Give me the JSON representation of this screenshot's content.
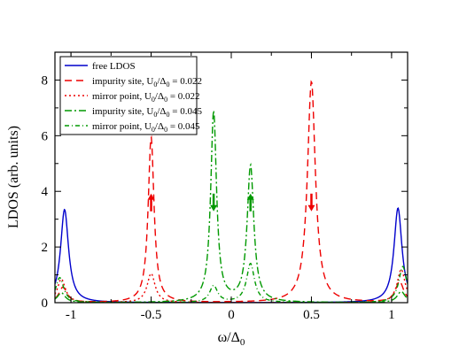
{
  "chart_data": {
    "type": "line",
    "title": "",
    "xlabel": "ω/Δ",
    "xlabel_sub": "0",
    "ylabel": "LDOS (arb. units)",
    "xlim": [
      -1.1,
      1.1
    ],
    "ylim": [
      0,
      9
    ],
    "xticks": [
      -1,
      -0.5,
      0,
      0.5,
      1
    ],
    "xtick_labels": [
      "-1",
      "-0.5",
      "0",
      "0.5",
      "1"
    ],
    "yticks": [
      0,
      2,
      4,
      6,
      8
    ],
    "ytick_labels": [
      "0",
      "2",
      "4",
      "6",
      "8"
    ],
    "grid": false,
    "legend_position": "top-left",
    "series": [
      {
        "legend": {
          "text": "free LDOS",
          "parts": []
        },
        "color": "#0000cc",
        "dash": "solid",
        "peaks": [
          {
            "x": -1.04,
            "h": 3.35,
            "w": 0.03
          },
          {
            "x": 1.04,
            "h": 3.4,
            "w": 0.03
          }
        ],
        "base": 0.0
      },
      {
        "legend": {
          "text": "impurity site, U",
          "parts": [
            "0",
            "/Δ",
            "0",
            " = 0.022"
          ]
        },
        "color": "#ee0000",
        "dash": "8,5",
        "peaks": [
          {
            "x": -0.5,
            "h": 5.95,
            "w": 0.022
          },
          {
            "x": 0.5,
            "h": 7.95,
            "w": 0.03
          },
          {
            "x": -1.05,
            "h": 0.55,
            "w": 0.03
          },
          {
            "x": 1.05,
            "h": 0.75,
            "w": 0.03
          }
        ],
        "base": 0.0
      },
      {
        "legend": {
          "text": "mirror point, U",
          "parts": [
            "0",
            "/Δ",
            "0",
            " = 0.022"
          ]
        },
        "color": "#ee0000",
        "dash": "2,3",
        "peaks": [
          {
            "x": -0.5,
            "h": 1.05,
            "w": 0.03
          },
          {
            "x": -1.06,
            "h": 0.85,
            "w": 0.03
          },
          {
            "x": 1.06,
            "h": 1.2,
            "w": 0.03
          }
        ],
        "base": 0.0
      },
      {
        "legend": {
          "text": "impurity site, U",
          "parts": [
            "0",
            "/Δ",
            "0",
            " = 0.045"
          ]
        },
        "color": "#009900",
        "dash": "8,3,2,3",
        "peaks": [
          {
            "x": -0.11,
            "h": 6.85,
            "w": 0.022
          },
          {
            "x": 0.12,
            "h": 4.9,
            "w": 0.025
          },
          {
            "x": -1.06,
            "h": 0.35,
            "w": 0.03
          },
          {
            "x": 1.06,
            "h": 0.4,
            "w": 0.03
          }
        ],
        "base": 0.0
      },
      {
        "legend": {
          "text": "mirror point, U",
          "parts": [
            "0",
            "/Δ",
            "0",
            " = 0.045"
          ]
        },
        "color": "#009900",
        "dash": "5,3,1,3",
        "peaks": [
          {
            "x": -0.11,
            "h": 0.6,
            "w": 0.03
          },
          {
            "x": 0.12,
            "h": 1.4,
            "w": 0.03
          },
          {
            "x": -1.07,
            "h": 0.9,
            "w": 0.03
          },
          {
            "x": 1.07,
            "h": 1.3,
            "w": 0.03
          }
        ],
        "base": 0.0
      }
    ],
    "arrows": [
      {
        "x": -0.5,
        "y": 3.6,
        "direction": "up",
        "color": "#ee0000"
      },
      {
        "x": 0.5,
        "y": 3.6,
        "direction": "down",
        "color": "#ee0000"
      },
      {
        "x": -0.11,
        "y": 3.6,
        "direction": "down",
        "color": "#009900"
      },
      {
        "x": 0.12,
        "y": 3.6,
        "direction": "up",
        "color": "#009900"
      }
    ]
  }
}
